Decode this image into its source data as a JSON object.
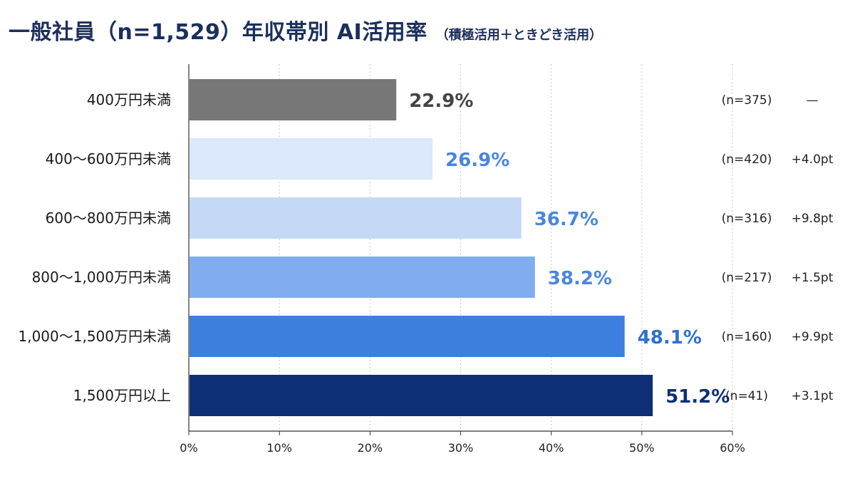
{
  "title": "一般社員（n=1,529）年収帯別 AI活用率",
  "subtitle": "（積極活用＋ときどき活用）",
  "chart_data": {
    "type": "bar",
    "orientation": "horizontal",
    "categories": [
      "400万円未満",
      "400〜600万円未満",
      "600〜800万円未満",
      "800〜1,000万円未満",
      "1,000〜1,500万円未満",
      "1,500万円以上"
    ],
    "values": [
      22.9,
      26.9,
      36.7,
      38.2,
      48.1,
      51.2
    ],
    "value_labels": [
      "22.9%",
      "26.9%",
      "36.7%",
      "38.2%",
      "48.1%",
      "51.2%"
    ],
    "n_labels": [
      "(n=375)",
      "(n=420)",
      "(n=316)",
      "(n=217)",
      "(n=160)",
      "(n=41)"
    ],
    "diff_labels": [
      "—",
      "+4.0pt",
      "+9.8pt",
      "+1.5pt",
      "+9.9pt",
      "+3.1pt"
    ],
    "bar_colors": [
      "#777777",
      "#dce8fb",
      "#c4d9f6",
      "#80acf0",
      "#3d7fdc",
      "#0d2f75"
    ],
    "label_colors": [
      "#444444",
      "#4a86de",
      "#4a86de",
      "#4a86de",
      "#2f6fd0",
      "#0d2f75"
    ],
    "xlim": [
      0,
      60
    ],
    "xticks": [
      "0%",
      "10%",
      "20%",
      "30%",
      "40%",
      "50%",
      "60%"
    ],
    "grid": true
  }
}
